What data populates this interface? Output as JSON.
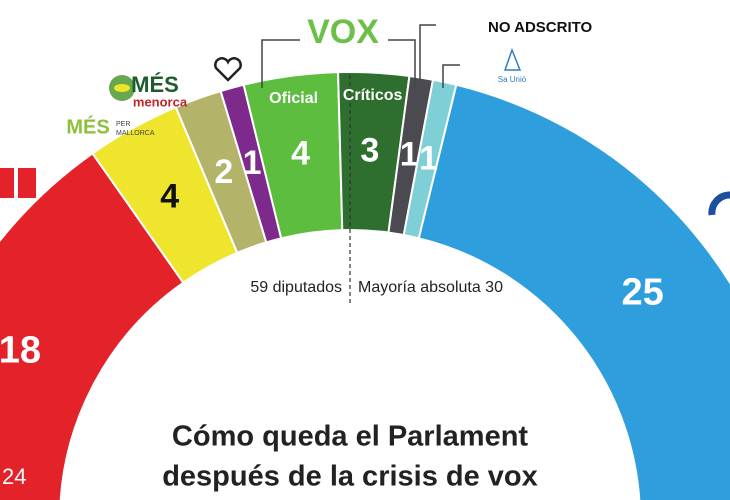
{
  "chart_data": {
    "type": "parliament",
    "title": [
      "Cómo queda el Parlament",
      "después de la crisis de vox"
    ],
    "categories": [
      null,
      null,
      null,
      null,
      "Oficial",
      "Críticos",
      null,
      null,
      null
    ],
    "values": [
      18,
      4,
      2,
      1,
      4,
      3,
      1,
      1,
      25
    ],
    "colors": [
      "#e3222a",
      "#f0e52d",
      "#b3b36a",
      "#7e2a8c",
      "#5cbd3f",
      "#2e6e2e",
      "#4a4a50",
      "#7fcfd6",
      "#2e9fdc"
    ],
    "label_colors": [
      "#ffffff",
      "#111111",
      "#ffffff",
      "#ffffff",
      "#ffffff",
      "#ffffff",
      "#ffffff",
      "#ffffff",
      "#ffffff"
    ],
    "total_label": "59 diputados",
    "majority_label": "Mayoría absoluta 30",
    "logos": {
      "vox": "VOX",
      "no_adscrito": "NO ADSCRITO",
      "mes_menorca": [
        "MÉS",
        "menorca"
      ],
      "mes_mallorca": [
        "MÉS",
        "PER",
        "MALLORCA"
      ],
      "sa_unio": "Sa Unió"
    },
    "corner_text": "24"
  }
}
